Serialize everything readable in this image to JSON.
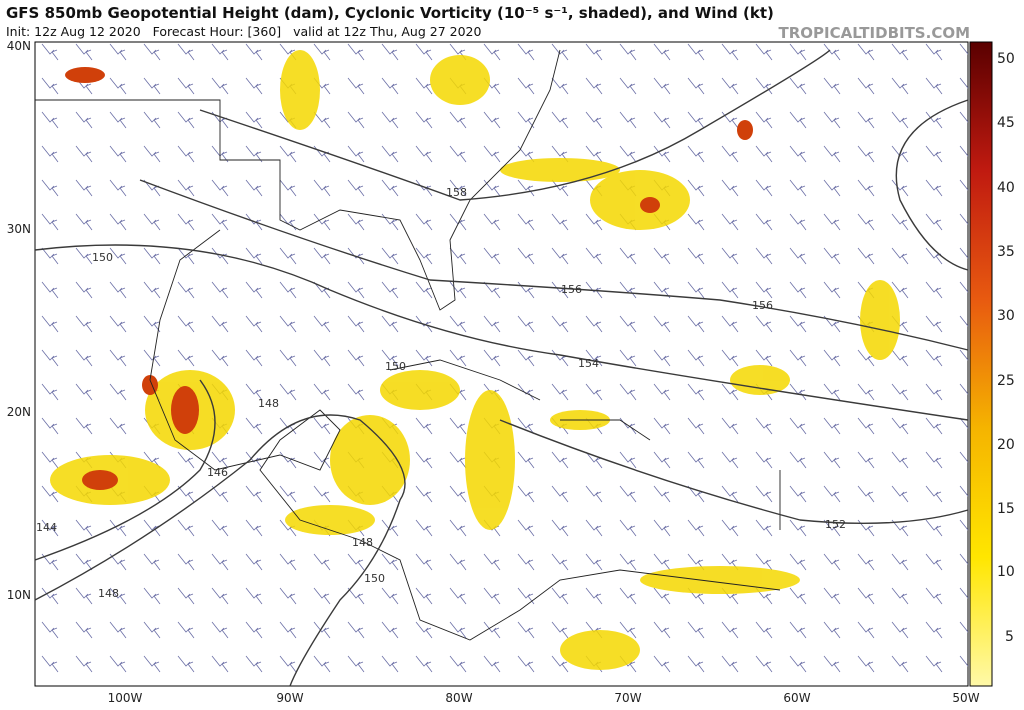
{
  "header": {
    "title": "GFS 850mb Geopotential Height (dam), Cyclonic Vorticity (10⁻⁵ s⁻¹, shaded), and Wind (kt)",
    "subtitle": "Init: 12z Aug 12 2020   Forecast Hour: [360]   valid at 12z Thu, Aug 27 2020",
    "credit": "TROPICALTIDBITS.COM"
  },
  "map": {
    "lat_labels": [
      "40N",
      "30N",
      "20N",
      "10N"
    ],
    "lon_labels": [
      "100W",
      "90W",
      "80W",
      "70W",
      "60W",
      "50W"
    ],
    "contour_labels": [
      "150",
      "158",
      "156",
      "156",
      "154",
      "150",
      "148",
      "146",
      "148",
      "150",
      "148",
      "152",
      "144"
    ]
  },
  "colorbar": {
    "ticks": [
      "50",
      "45",
      "40",
      "35",
      "30",
      "25",
      "20",
      "15",
      "10",
      "5"
    ]
  }
}
